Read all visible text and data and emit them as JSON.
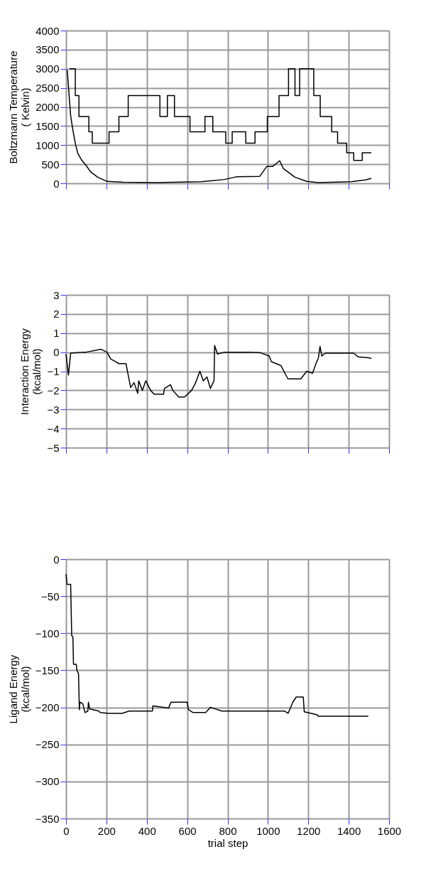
{
  "chart_data": [
    {
      "type": "line",
      "ylabel": "Boltzmann Temperature\n( Kelvin)",
      "xlim": [
        0,
        1600
      ],
      "xticks": [
        0,
        200,
        400,
        600,
        800,
        1000,
        1200,
        1400,
        1600
      ],
      "ylim": [
        0,
        4000
      ],
      "yticks": [
        0,
        500,
        1000,
        1500,
        2000,
        2500,
        3000,
        3500,
        4000
      ],
      "grid": true,
      "tick_labels": "y",
      "series": [
        {
          "type": "step",
          "color": "#000000",
          "x": [
            17,
            46,
            64,
            113,
            130,
            213,
            262,
            308,
            465,
            502,
            537,
            614,
            688,
            727,
            791,
            823,
            890,
            936,
            997,
            1055,
            1102,
            1134,
            1157,
            1227,
            1259,
            1316,
            1345,
            1390,
            1425,
            1467,
            1512
          ],
          "values": [
            3000,
            2300,
            1750,
            1350,
            1050,
            1350,
            1750,
            2300,
            1750,
            2300,
            1750,
            1350,
            1750,
            1350,
            1050,
            1350,
            1050,
            1350,
            1750,
            2300,
            3000,
            2300,
            3000,
            2300,
            1750,
            1350,
            1050,
            800,
            600,
            800,
            800
          ]
        },
        {
          "type": "line",
          "color": "#000000",
          "x": [
            6,
            23,
            35,
            47,
            58,
            76,
            99,
            122,
            157,
            203,
            285,
            448,
            669,
            785,
            843,
            959,
            994,
            1023,
            1058,
            1076,
            1134,
            1192,
            1250,
            1413,
            1483,
            1512
          ],
          "values": [
            2970,
            1760,
            1360,
            1020,
            790,
            620,
            470,
            300,
            160,
            50,
            30,
            20,
            40,
            100,
            170,
            180,
            440,
            440,
            590,
            390,
            160,
            50,
            20,
            40,
            90,
            130
          ]
        }
      ]
    },
    {
      "type": "line",
      "ylabel": "Interaction Energy\n(kcal/mol)",
      "xlim": [
        0,
        1600
      ],
      "xticks": [
        0,
        200,
        400,
        600,
        800,
        1000,
        1200,
        1400,
        1600
      ],
      "ylim": [
        -5,
        3
      ],
      "yticks": [
        -5,
        -4,
        -3,
        -2,
        -1,
        0,
        1,
        2,
        3
      ],
      "grid": true,
      "tick_labels": "y",
      "series": [
        {
          "color": "#000000",
          "x": [
            0,
            12,
            23,
            87,
            99,
            174,
            203,
            221,
            262,
            297,
            308,
            320,
            337,
            355,
            360,
            378,
            395,
            419,
            436,
            483,
            488,
            517,
            529,
            558,
            587,
            622,
            640,
            663,
            680,
            698,
            715,
            733,
            736,
            750,
            785,
            901,
            959,
            1006,
            1017,
            1064,
            1099,
            1163,
            1192,
            1221,
            1238,
            1250,
            1258,
            1267,
            1285,
            1424,
            1448,
            1506,
            1512
          ],
          "values": [
            -0.1,
            -1.2,
            -0.05,
            0.0,
            0.0,
            0.15,
            0.0,
            -0.35,
            -0.6,
            -0.6,
            -1.2,
            -1.85,
            -1.6,
            -2.15,
            -1.5,
            -2.0,
            -1.5,
            -2.0,
            -2.2,
            -2.2,
            -1.9,
            -1.7,
            -2.0,
            -2.35,
            -2.35,
            -2.0,
            -1.65,
            -1.0,
            -1.5,
            -1.3,
            -1.9,
            -1.5,
            0.35,
            -0.1,
            0.0,
            0.0,
            -0.02,
            -0.2,
            -0.5,
            -0.7,
            -1.4,
            -1.4,
            -1.0,
            -1.1,
            -0.6,
            -0.3,
            0.3,
            -0.2,
            -0.05,
            -0.05,
            -0.25,
            -0.3,
            -0.35
          ]
        }
      ]
    },
    {
      "type": "line",
      "ylabel": "Ligand Energy\n(kcal/mol)",
      "xlabel": "trial step",
      "xlim": [
        0,
        1600
      ],
      "xticks": [
        0,
        200,
        400,
        600,
        800,
        1000,
        1200,
        1400,
        1600
      ],
      "ylim": [
        -350,
        0
      ],
      "yticks": [
        -350,
        -300,
        -250,
        -200,
        -150,
        -100,
        -50,
        0
      ],
      "grid": true,
      "series": [
        {
          "color": "#000000",
          "x": [
            0,
            5,
            23,
            28,
            34,
            37,
            51,
            54,
            62,
            66,
            69,
            83,
            94,
            108,
            111,
            117,
            163,
            169,
            209,
            278,
            313,
            428,
            430,
            508,
            520,
            600,
            606,
            629,
            692,
            715,
            738,
            772,
            1083,
            1100,
            1117,
            1123,
            1140,
            1175,
            1180,
            1244,
            1249,
            1497
          ],
          "values": [
            -20,
            -34,
            -34,
            -103,
            -105,
            -142,
            -142,
            -150,
            -155,
            -203,
            -193,
            -195,
            -207,
            -205,
            -193,
            -202,
            -205,
            -207,
            -208,
            -208,
            -205,
            -205,
            -198,
            -201,
            -193,
            -193,
            -203,
            -207,
            -207,
            -200,
            -202,
            -205,
            -205,
            -208,
            -197,
            -193,
            -186,
            -186,
            -206,
            -210,
            -212,
            -212
          ]
        }
      ]
    }
  ]
}
